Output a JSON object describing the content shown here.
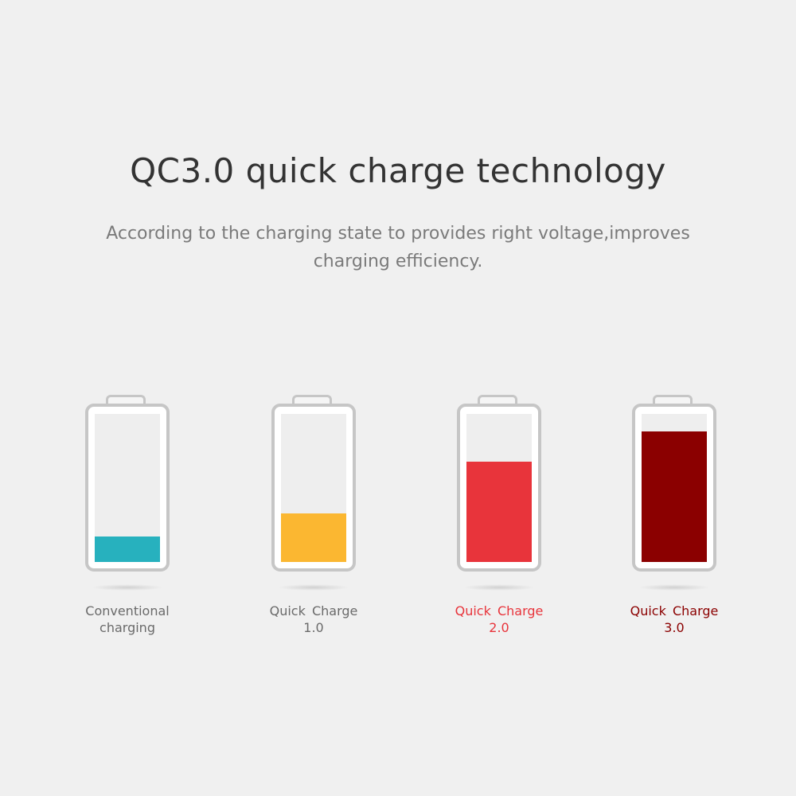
{
  "header": {
    "title": "QC3.0 quick charge technology",
    "subtitle": "According to the charging state to provides right voltage,improves charging efficiency."
  },
  "batteries": [
    {
      "label_line1": "Conventional",
      "label_line2": "charging",
      "fill_percent": 17,
      "fill_color": "#27b1be",
      "label_color": "#6a6a6a"
    },
    {
      "label_line1": "Quick Charge",
      "label_line2": "1.0",
      "fill_percent": 33,
      "fill_color": "#fbb731",
      "label_color": "#6a6a6a"
    },
    {
      "label_line1": "Quick Charge",
      "label_line2": "2.0",
      "fill_percent": 68,
      "fill_color": "#e8343b",
      "label_color": "#e8343b"
    },
    {
      "label_line1": "Quick Charge",
      "label_line2": "3.0",
      "fill_percent": 88,
      "fill_color": "#8b0000",
      "label_color": "#8b0000"
    }
  ]
}
